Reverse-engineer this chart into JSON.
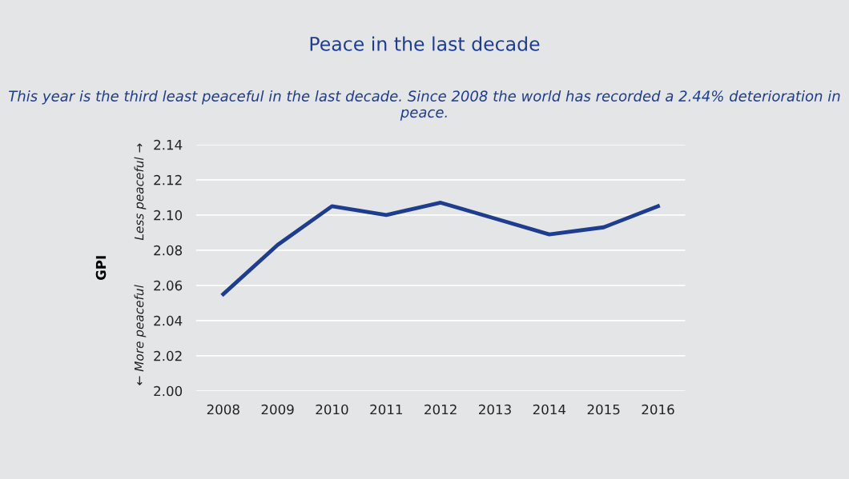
{
  "chart_data": {
    "type": "line",
    "title": "Peace in the last decade",
    "subtitle": "This year is the third least peaceful in the last decade. Since 2008 the world has recorded a 2.44% deterioration in peace.",
    "ylabel": "GPI",
    "annotations": [
      "Less peaceful →",
      "← More peaceful"
    ],
    "categories": [
      "2008",
      "2009",
      "2010",
      "2011",
      "2012",
      "2013",
      "2014",
      "2015",
      "2016"
    ],
    "series": [
      {
        "color": "#1f3d8f",
        "values": [
          2.055,
          2.083,
          2.105,
          2.1,
          2.107,
          2.098,
          2.089,
          2.093,
          2.105
        ]
      }
    ],
    "ylim": [
      2.0,
      2.14
    ],
    "yticks": [
      {
        "value": 2.0,
        "label": "2.00"
      },
      2.02,
      2.04,
      2.06,
      2.08,
      {
        "value": 2.1,
        "label": "2.10"
      },
      2.12,
      2.14
    ],
    "grid": "y",
    "marker": "none",
    "line_style": "solid"
  }
}
